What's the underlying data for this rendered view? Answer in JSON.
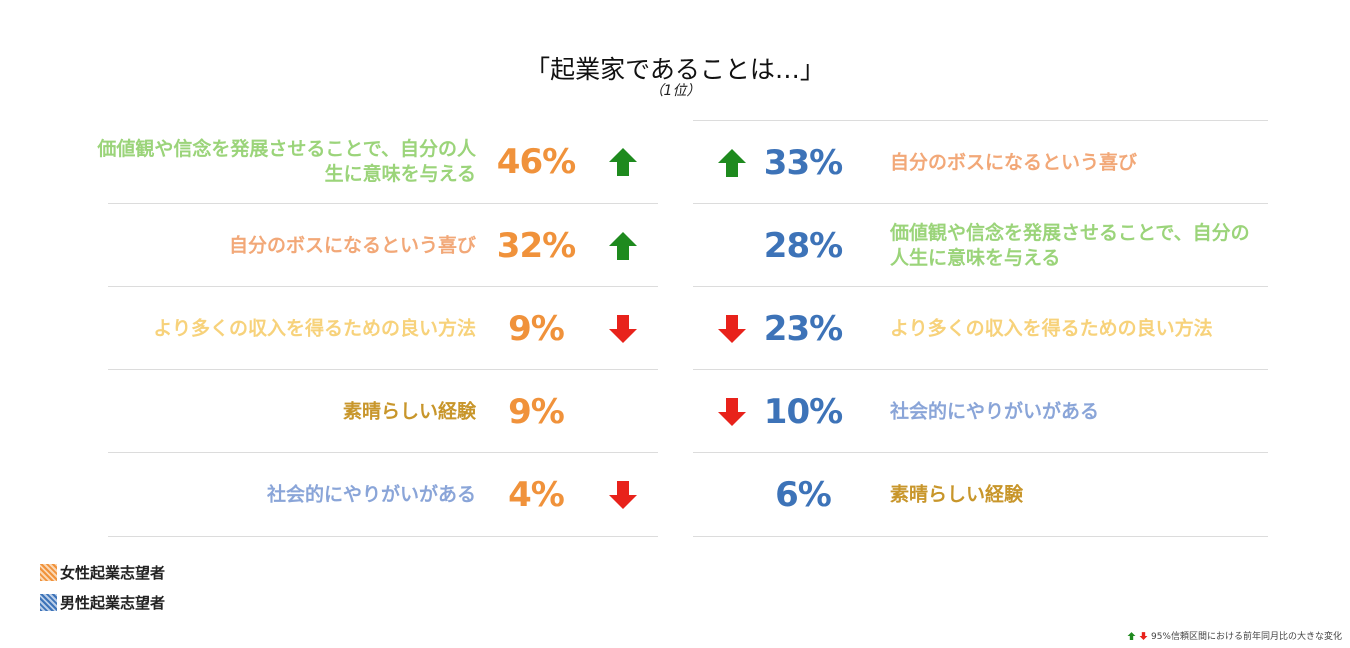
{
  "title": "「起業家であることは…」",
  "subtitle": "（1位）",
  "colors": {
    "female": "#f0923b",
    "male": "#3d73b8",
    "up_arrow": "#1e8a1e",
    "down_arrow": "#e8221b",
    "category_colors": {
      "価値観や信念を発展させることで、自分の人生に意味を与える": "#9bd47a",
      "自分のボスになるという喜び": "#f2a878",
      "より多くの収入を得るための良い方法": "#f7d27b",
      "素晴らしい経験": "#c8962b",
      "社会的にやりがいがある": "#8aa5d8"
    }
  },
  "chart_data": {
    "type": "table",
    "title": "「起業家であることは…」",
    "subtitle": "（1位）",
    "series": [
      {
        "name": "女性起業志望者",
        "rows": [
          {
            "label": "価値観や信念を発展させることで、自分の人生に意味を与える",
            "value": "46%",
            "change": "up"
          },
          {
            "label": "自分のボスになるという喜び",
            "value": "32%",
            "change": "up"
          },
          {
            "label": "より多くの収入を得るための良い方法",
            "value": "9%",
            "change": "down"
          },
          {
            "label": "素晴らしい経験",
            "value": "9%",
            "change": "none"
          },
          {
            "label": "社会的にやりがいがある",
            "value": "4%",
            "change": "down"
          }
        ]
      },
      {
        "name": "男性起業志望者",
        "rows": [
          {
            "label": "自分のボスになるという喜び",
            "value": "33%",
            "change": "up"
          },
          {
            "label": "価値観や信念を発展させることで、自分の人生に意味を与える",
            "value": "28%",
            "change": "none"
          },
          {
            "label": "より多くの収入を得るための良い方法",
            "value": "23%",
            "change": "down"
          },
          {
            "label": "社会的にやりがいがある",
            "value": "10%",
            "change": "down"
          },
          {
            "label": "素晴らしい経験",
            "value": "6%",
            "change": "none"
          }
        ]
      }
    ],
    "legend": [
      "女性起業志望者",
      "男性起業志望者"
    ],
    "footnote": "95%信頼区間における前年同月比の大きな変化"
  }
}
